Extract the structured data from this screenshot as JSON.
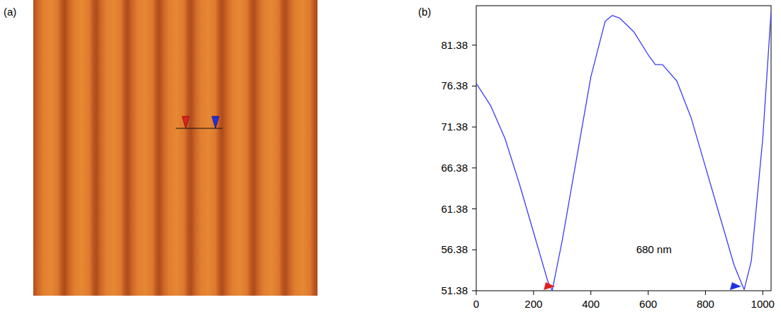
{
  "panel_labels": [
    "(a)",
    "(b)"
  ],
  "chart_data": {
    "type": "line",
    "x": [
      0,
      50,
      100,
      150,
      200,
      250,
      265,
      300,
      350,
      400,
      450,
      475,
      500,
      550,
      600,
      625,
      650,
      700,
      750,
      800,
      850,
      900,
      935,
      960,
      1000,
      1029
    ],
    "values": [
      76.7,
      74.0,
      70.0,
      64.5,
      58.5,
      52.5,
      51.4,
      57.5,
      67.5,
      77.5,
      84.3,
      85.0,
      84.7,
      83.0,
      80.2,
      79.0,
      79.0,
      77.0,
      72.5,
      66.5,
      60.5,
      54.5,
      51.5,
      55.0,
      70.0,
      85.5
    ],
    "color": "#3a3aff",
    "xlim": [
      0,
      1029
    ],
    "ylim": [
      51.38,
      86.2
    ],
    "xticks": [
      0,
      200,
      400,
      600,
      800,
      1000
    ],
    "yticks": [
      51.38,
      56.38,
      61.38,
      66.38,
      71.38,
      76.38,
      81.38
    ],
    "grid": false,
    "cursors": [
      255,
      905
    ],
    "annotations": [
      {
        "text": "680 nm",
        "x": 620,
        "y": 56.38
      }
    ]
  }
}
